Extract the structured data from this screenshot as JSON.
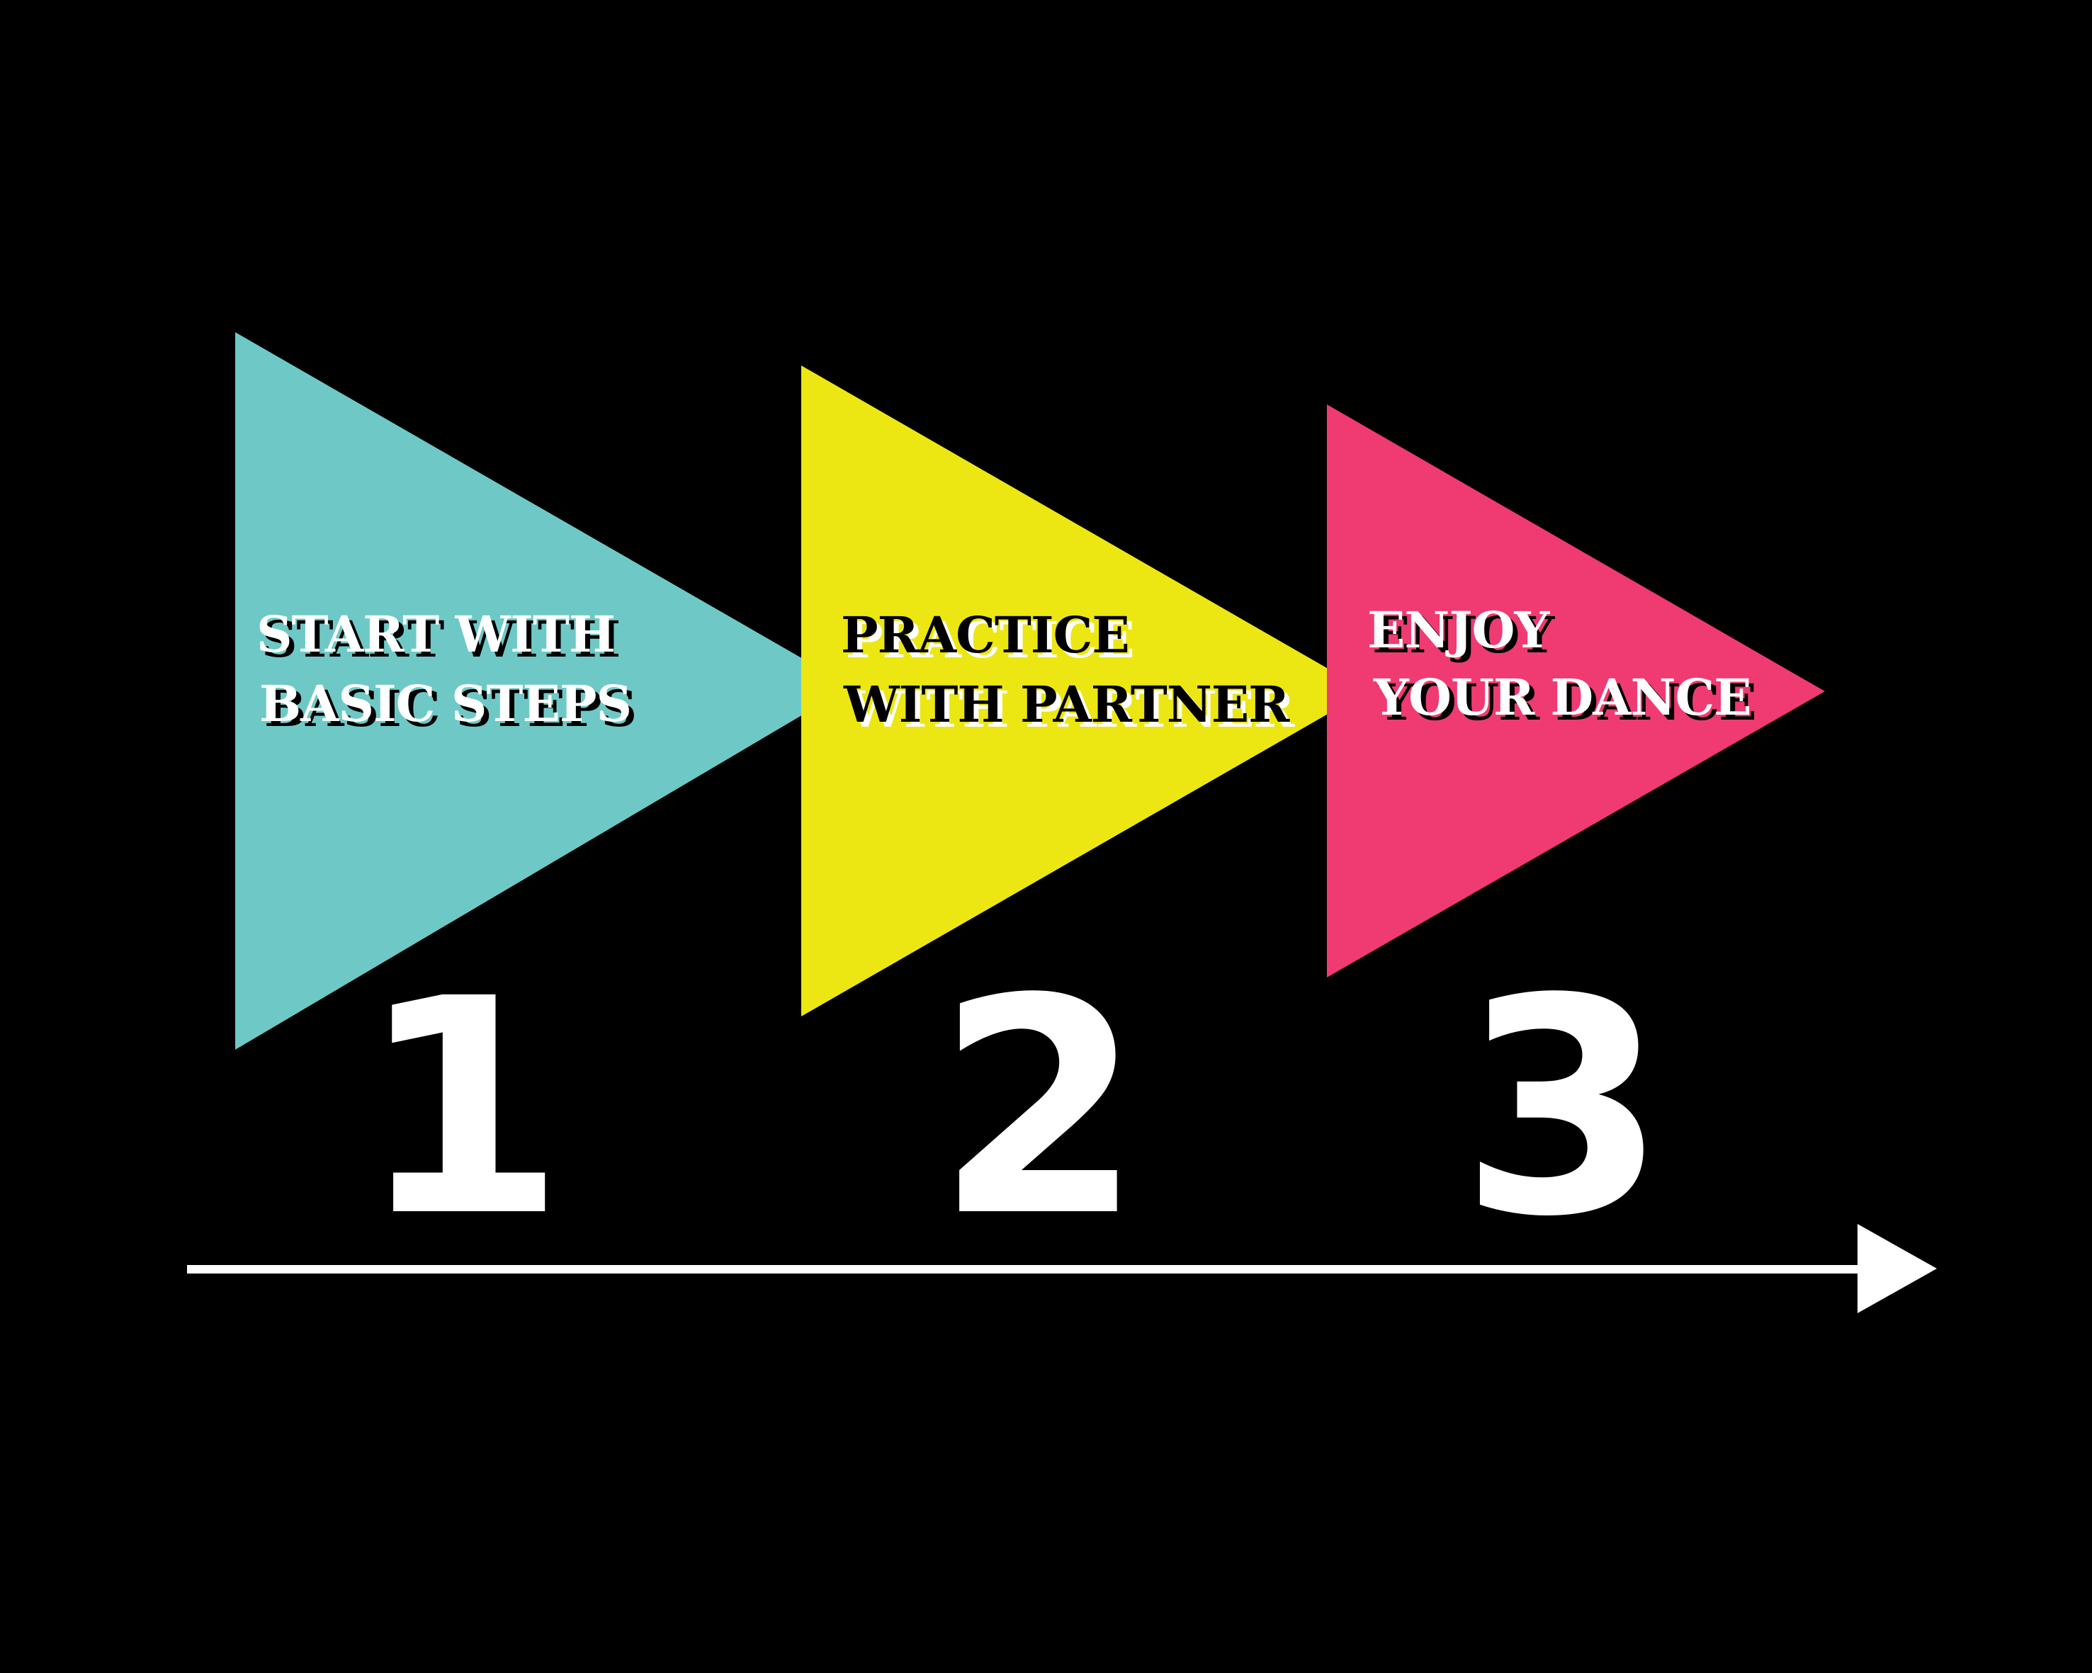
{
  "background": "#000000",
  "steps": [
    {
      "number": "1",
      "line1": "START WITH",
      "line2": "BASIC STEPS",
      "color": "#6ec9c6",
      "text_color": "#ffffff",
      "shadow_color": "#000000"
    },
    {
      "number": "2",
      "line1": "PRACTICE",
      "line2": "WITH PARTNER",
      "color": "#ece713",
      "text_color": "#000000",
      "shadow_color": "#ffffff"
    },
    {
      "number": "3",
      "line1": "ENJOY",
      "line2": "YOUR DANCE",
      "color": "#ef3a72",
      "text_color": "#ffffff",
      "shadow_color": "#000000"
    }
  ],
  "arrow_color": "#ffffff",
  "number_color": "#ffffff"
}
